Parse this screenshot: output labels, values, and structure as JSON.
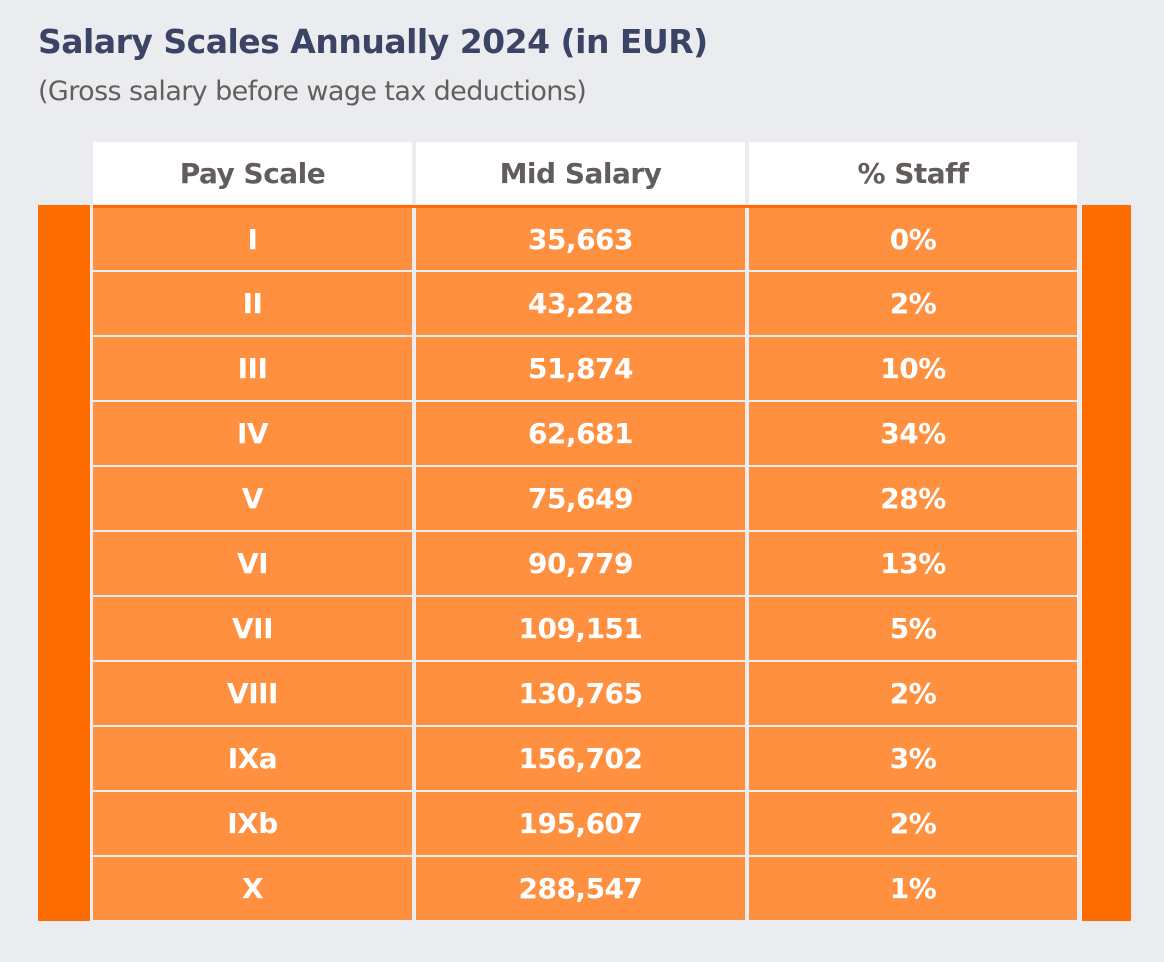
{
  "title": "Salary Scales Annually 2024 (in EUR)",
  "subtitle": "(Gross salary before wage tax deductions)",
  "colors": {
    "title": "#3b4464",
    "header_text": "#625d5a",
    "row_fill": "#ff9040",
    "side_bar": "#ff6d00",
    "background": "#ebecf0"
  },
  "table": {
    "headers": [
      "Pay Scale",
      "Mid Salary",
      "% Staff"
    ],
    "rows": [
      {
        "scale": "I",
        "mid_salary": "35,663",
        "staff": "0%"
      },
      {
        "scale": "II",
        "mid_salary": "43,228",
        "staff": "2%"
      },
      {
        "scale": "III",
        "mid_salary": "51,874",
        "staff": "10%"
      },
      {
        "scale": "IV",
        "mid_salary": "62,681",
        "staff": "34%"
      },
      {
        "scale": "V",
        "mid_salary": "75,649",
        "staff": "28%"
      },
      {
        "scale": "VI",
        "mid_salary": "90,779",
        "staff": "13%"
      },
      {
        "scale": "VII",
        "mid_salary": "109,151",
        "staff": "5%"
      },
      {
        "scale": "VIII",
        "mid_salary": "130,765",
        "staff": "2%"
      },
      {
        "scale": "IXa",
        "mid_salary": "156,702",
        "staff": "3%"
      },
      {
        "scale": "IXb",
        "mid_salary": "195,607",
        "staff": "2%"
      },
      {
        "scale": "X",
        "mid_salary": "288,547",
        "staff": "1%"
      }
    ]
  }
}
